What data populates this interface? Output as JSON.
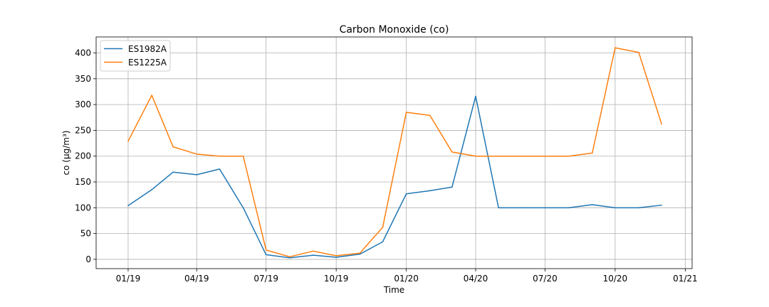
{
  "chart_data": {
    "type": "line",
    "title": "Carbon Monoxide (co)",
    "xlabel": "Time",
    "ylabel": "co (µg/m³)",
    "x": [
      "2019-01",
      "2019-02",
      "2019-03",
      "2019-04",
      "2019-05",
      "2019-06",
      "2019-07",
      "2019-08",
      "2019-09",
      "2019-10",
      "2019-11",
      "2019-12",
      "2020-01",
      "2020-02",
      "2020-03",
      "2020-04",
      "2020-05",
      "2020-06",
      "2020-07",
      "2020-08",
      "2020-09",
      "2020-10",
      "2020-11",
      "2020-12"
    ],
    "x_ticks": [
      {
        "date": "2019-01",
        "label": "01/19"
      },
      {
        "date": "2019-04",
        "label": "04/19"
      },
      {
        "date": "2019-07",
        "label": "07/19"
      },
      {
        "date": "2019-10",
        "label": "10/19"
      },
      {
        "date": "2020-01",
        "label": "01/20"
      },
      {
        "date": "2020-04",
        "label": "04/20"
      },
      {
        "date": "2020-07",
        "label": "07/20"
      },
      {
        "date": "2020-10",
        "label": "10/20"
      },
      {
        "date": "2021-01",
        "label": "01/21"
      }
    ],
    "xlim": [
      "2018-11-20",
      "2021-01-10"
    ],
    "y_ticks": [
      0,
      50,
      100,
      150,
      200,
      250,
      300,
      350,
      400
    ],
    "ylim": [
      -18,
      431
    ],
    "grid": true,
    "legend_position": "top-left",
    "series": [
      {
        "name": "ES1982A",
        "color": "#1f77b4",
        "values": [
          104,
          135,
          169,
          164,
          175,
          100,
          9,
          3,
          8,
          4,
          10,
          34,
          127,
          133,
          140,
          316,
          100,
          100,
          100,
          100,
          106,
          100,
          100,
          105
        ]
      },
      {
        "name": "ES1225A",
        "color": "#ff7f0e",
        "values": [
          229,
          318,
          218,
          204,
          200,
          200,
          18,
          5,
          16,
          7,
          12,
          62,
          285,
          279,
          208,
          200,
          200,
          200,
          200,
          200,
          206,
          410,
          401,
          262
        ]
      }
    ]
  }
}
